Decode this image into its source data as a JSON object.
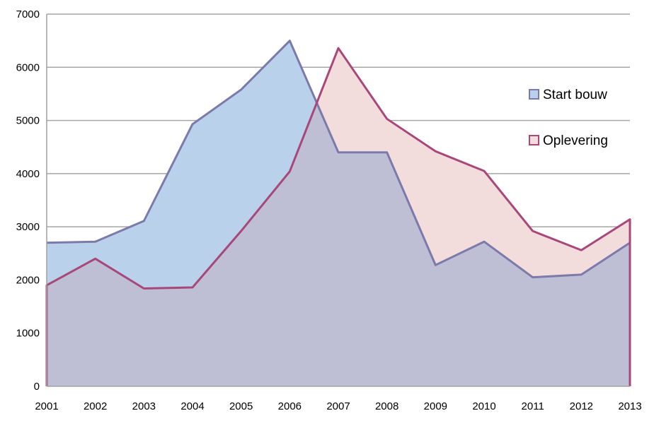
{
  "chart_data": {
    "type": "area",
    "categories": [
      "2001",
      "2002",
      "2003",
      "2004",
      "2005",
      "2006",
      "2007",
      "2008",
      "2009",
      "2010",
      "2011",
      "2012",
      "2013"
    ],
    "series": [
      {
        "name": "Start bouw",
        "values": [
          2700,
          2720,
          3110,
          4930,
          5580,
          6500,
          4400,
          4400,
          2280,
          2720,
          2050,
          2100,
          2700
        ],
        "line_color": "#7b7aab",
        "fill_color": "#b9d1ea"
      },
      {
        "name": "Oplevering",
        "values": [
          1900,
          2400,
          1840,
          1860,
          2920,
          4040,
          6360,
          5030,
          4420,
          4050,
          2920,
          2560,
          3140
        ],
        "line_color": "#a8487a",
        "fill_color": "#f3dcdc"
      }
    ],
    "overlap_color": "#bebfd4",
    "ylim": [
      0,
      7000
    ],
    "yticks": [
      "0",
      "1000",
      "2000",
      "3000",
      "4000",
      "5000",
      "6000",
      "7000"
    ],
    "grid": true,
    "legend": "right"
  }
}
